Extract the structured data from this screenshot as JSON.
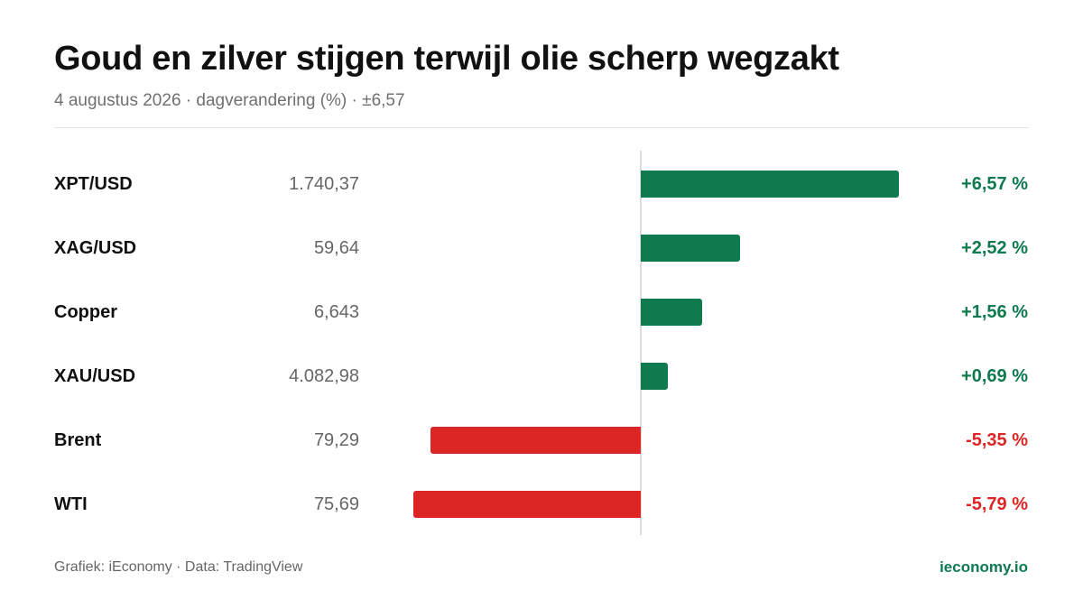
{
  "header": {
    "title": "Goud en zilver stijgen terwijl olie scherp wegzakt",
    "subtitle": "4 augustus 2026 · dagverandering (%) · ±6,57"
  },
  "footer": {
    "credit": "Grafiek: iEconomy · Data: TradingView",
    "site": "ieconomy.io"
  },
  "colors": {
    "positive": "#0f7a4e",
    "negative": "#dc2626",
    "site": "#0f7a4e"
  },
  "chart_data": {
    "type": "bar",
    "orientation": "horizontal",
    "categories": [
      "XPT/USD",
      "XAG/USD",
      "Copper",
      "XAU/USD",
      "Brent",
      "WTI"
    ],
    "prices": [
      "1.740,37",
      "59,64",
      "6,643",
      "4.082,98",
      "79,29",
      "75,69"
    ],
    "values": [
      6.57,
      2.52,
      1.56,
      0.69,
      -5.35,
      -5.79
    ],
    "value_labels": [
      "+6,57 %",
      "+2,52 %",
      "+1,56 %",
      "+0,69 %",
      "-5,35 %",
      "-5,79 %"
    ],
    "xlim": [
      -6.57,
      6.57
    ],
    "grid": false,
    "legend": "none"
  }
}
